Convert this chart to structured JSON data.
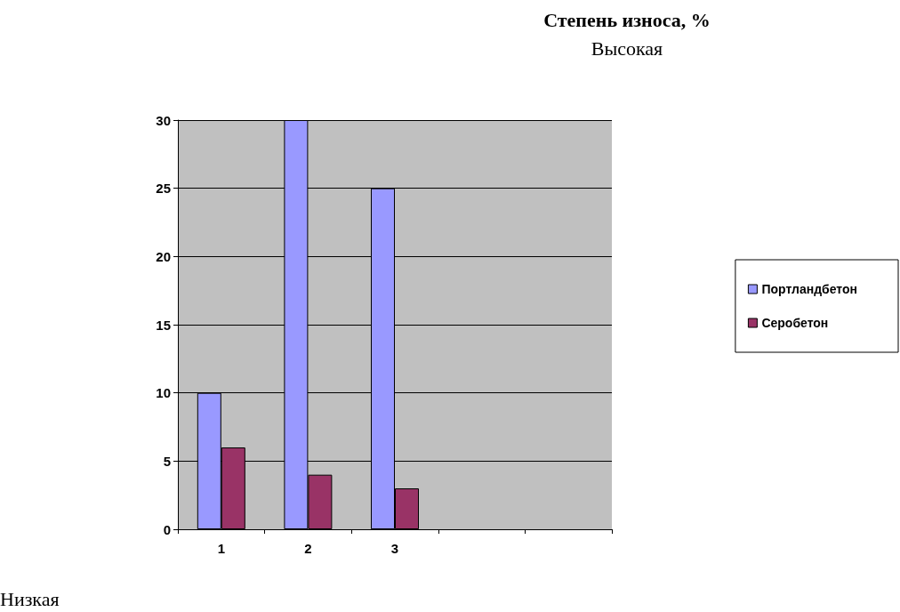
{
  "chart_data": {
    "type": "bar",
    "title": "Степень износа, %",
    "subtitle": "Высокая",
    "annotations": [
      "Низкая"
    ],
    "categories": [
      "1",
      "2",
      "3",
      null,
      null
    ],
    "series": [
      {
        "name": "Портландбетон",
        "color": "#9999ff",
        "values": [
          10,
          30,
          25,
          null,
          null
        ]
      },
      {
        "name": "Серобетон",
        "color": "#993366",
        "values": [
          6,
          4,
          3,
          null,
          null
        ]
      }
    ],
    "ylim": [
      0,
      30
    ],
    "yticks": [
      0,
      5,
      10,
      15,
      20,
      25,
      30
    ],
    "grid": "y",
    "legend": "right"
  }
}
